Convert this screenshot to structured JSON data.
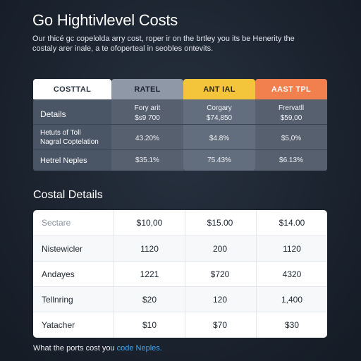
{
  "header": {
    "title": "Go Hightivlevel Costs",
    "subtitle_line1": "Our thicé gc copelolda arry cost, roper ir on the brtley you its be Henerity the",
    "subtitle_line2": "costaly arer inale, a te ofoperteal in seobles ontevits."
  },
  "comparison": {
    "columns": [
      "COSTTAL",
      "RATEL",
      "ANT IAL",
      "AAST TPL"
    ],
    "column_colors": [
      "#ffffff",
      "#8f98a6",
      "#f4c43a",
      "#f2804e"
    ],
    "rows": [
      {
        "label": "Details",
        "values": [
          [
            "Fory arit",
            "$s9 700"
          ],
          [
            "Corgary",
            "$74,850"
          ],
          [
            "Frervatll",
            "$59,00"
          ]
        ]
      },
      {
        "label": "Hetuts of Toll",
        "label2": "Nagral Coptelation",
        "values": [
          [
            "43.20%"
          ],
          [
            "$4.8%"
          ],
          [
            "$5,0%"
          ]
        ]
      },
      {
        "label": "Hetrel Neples",
        "values": [
          [
            "$35.1%"
          ],
          [
            "75.43%"
          ],
          [
            "$6.13%"
          ]
        ]
      }
    ]
  },
  "details": {
    "title": "Costal Details",
    "rows": [
      {
        "label": "Sectare",
        "values": [
          "$10,00",
          "$15.00",
          "$14.00"
        ]
      },
      {
        "label": "Nistewicler",
        "values": [
          "1120",
          "200",
          "1120"
        ]
      },
      {
        "label": "Andayes",
        "values": [
          "1221",
          "$720",
          "4320"
        ]
      },
      {
        "label": "Tellnring",
        "values": [
          "$20",
          "120",
          "1,400"
        ]
      },
      {
        "label": "Yatacher",
        "values": [
          "$10",
          "$70",
          "$30"
        ]
      }
    ]
  },
  "footer": {
    "text": "What the ports cost you",
    "link": "code Neples."
  }
}
